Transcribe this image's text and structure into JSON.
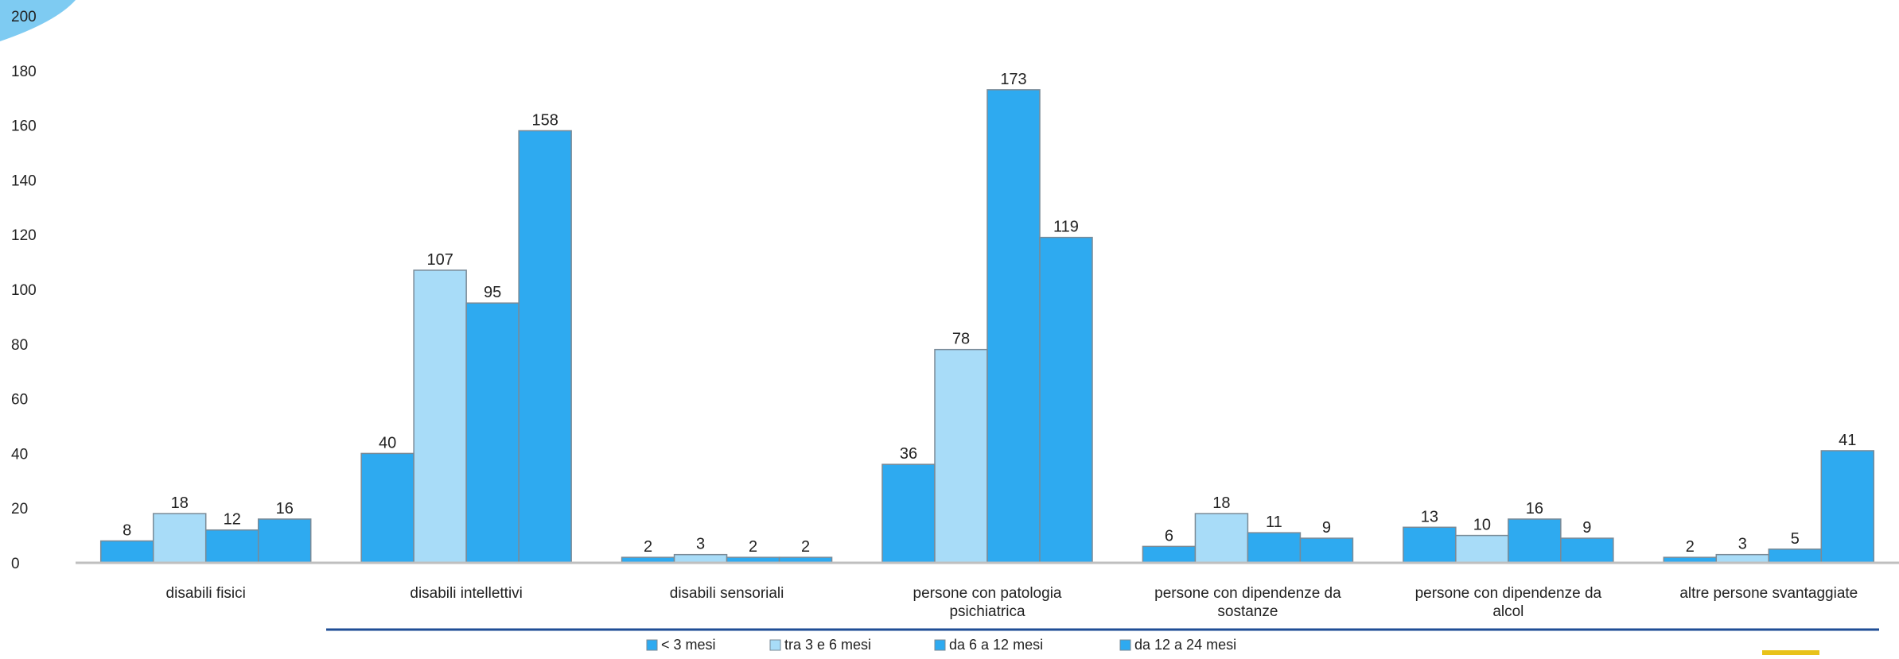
{
  "chart_data": {
    "type": "bar",
    "title": "",
    "xlabel": "",
    "ylabel": "",
    "ylim": [
      0,
      200
    ],
    "yticks": [
      0,
      20,
      40,
      60,
      80,
      100,
      120,
      140,
      160,
      180,
      200
    ],
    "grid": false,
    "legend_position": "bottom",
    "categories": [
      [
        "disabili fisici"
      ],
      [
        "disabili intellettivi"
      ],
      [
        "disabili sensoriali"
      ],
      [
        "persone con patologia",
        "psichiatrica"
      ],
      [
        "persone con dipendenze da",
        "sostanze"
      ],
      [
        "persone con dipendenze da",
        "alcol"
      ],
      [
        "altre persone svantaggiate"
      ]
    ],
    "series": [
      {
        "name": "< 3 mesi",
        "color": "#2eaaf0",
        "values": [
          8,
          40,
          2,
          36,
          6,
          13,
          2
        ]
      },
      {
        "name": "tra 3 e 6 mesi",
        "color": "#a8dcf8",
        "values": [
          18,
          107,
          3,
          78,
          18,
          10,
          3
        ]
      },
      {
        "name": "da 6 a 12 mesi",
        "color": "#2eaaf0",
        "values": [
          12,
          95,
          2,
          173,
          11,
          16,
          5
        ]
      },
      {
        "name": "da 12 a 24 mesi",
        "color": "#2eaaf0",
        "values": [
          16,
          158,
          2,
          119,
          9,
          9,
          41
        ]
      }
    ]
  }
}
